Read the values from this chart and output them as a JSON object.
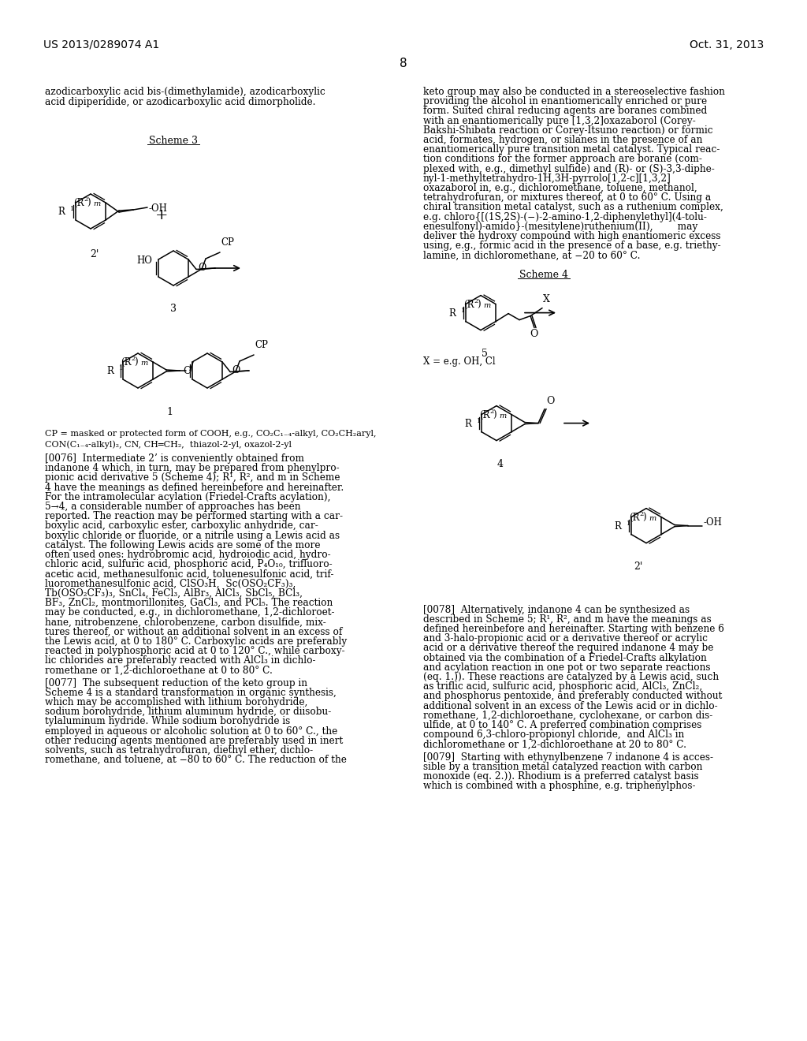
{
  "header_left": "US 2013/0289074 A1",
  "header_right": "Oct. 31, 2013",
  "page_number": "8",
  "bg": "#ffffff",
  "left_para1": "azodicarboxylic acid bis-(dimethylamide), azodicarboxylic\nacid dipiperidide, or azodicarboxylic acid dimorpholide.",
  "scheme3_label": "Scheme 3",
  "cp_note_line1": "CP = masked or protected form of COOH, e.g., CO₂C₁₋₄-alkyl, CO₂CH₂aryl,",
  "cp_note_line2": "CON(C₁₋₄-alkyl)₂, CN, CH═CH₂,  thiazol-2-yl, oxazol-2-yl",
  "right_para1_lines": [
    "keto group may also be conducted in a stereoselective fashion",
    "providing the alcohol in enantiomerically enriched or pure",
    "form. Suited chiral reducing agents are boranes combined",
    "with an enantiomerically pure [1,3,2]oxazaborol (Corey-",
    "Bakshi-Shibata reaction or Corey-Itsuno reaction) or formic",
    "acid, formates, hydrogen, or silanes in the presence of an",
    "enantiomerically pure transition metal catalyst. Typical reac-",
    "tion conditions for the former approach are borane (com-",
    "plexed with, e.g., dimethyl sulfide) and (R)- or (S)-3,3-diphe-",
    "nyl-1-methyltetrahydro-1H,3H-pyrrolo[1,2-c][1,3,2]",
    "oxazaborol in, e.g., dichloromethane, toluene, methanol,",
    "tetrahydrofuran, or mixtures thereof, at 0 to 60° C. Using a",
    "chiral transition metal catalyst, such as a ruthenium complex,",
    "e.g. chloro{[(1S,2S)-(−)-2-amino-1,2-diphenylethyl](4-tolu-",
    "enesulfonyl)-amido}-(mesitylene)ruthenium(II),        may",
    "deliver the hydroxy compound with high enantiomeric excess",
    "using, e.g., formic acid in the presence of a base, e.g. triethy-",
    "lamine, in dichloromethane, at −20 to 60° C."
  ],
  "scheme4_label": "Scheme 4",
  "x_note": "X = e.g. OH, Cl",
  "para_076_lines": [
    "[0076]  Intermediate 2’ is conveniently obtained from",
    "indanone 4 which, in turn, may be prepared from phenylpro-",
    "pionic acid derivative 5 (Scheme 4); R¹, R², and m in Scheme",
    "4 have the meanings as defined hereinbefore and hereinafter.",
    "For the intramolecular acylation (Friedel-Crafts acylation),",
    "5→4, a considerable number of approaches has been",
    "reported. The reaction may be performed starting with a car-",
    "boxylic acid, carboxylic ester, carboxylic anhydride, car-",
    "boxylic chloride or fluoride, or a nitrile using a Lewis acid as",
    "catalyst. The following Lewis acids are some of the more",
    "often used ones: hydrobromic acid, hydroiodic acid, hydro-",
    "chloric acid, sulfuric acid, phosphoric acid, P₄O₁₀, trifluoro-",
    "acetic acid, methanesulfonic acid, toluenesulfonic acid, trif-",
    "luoromethanesulfonic acid, ClSO₃H,  Sc(OSO₂CF₃)₃,",
    "Tb(OSO₂CF₃)₃, SnCl₄, FeCl₃, AlBr₃, AlCl₃, SbCl₅, BCl₃,",
    "BF₃, ZnCl₂, montmorillonites, GaCl₃, and PCl₅. The reaction",
    "may be conducted, e.g., in dichloromethane, 1,2-dichloroet-",
    "hane, nitrobenzene, chlorobenzene, carbon disulfide, mix-",
    "tures thereof, or without an additional solvent in an excess of",
    "the Lewis acid, at 0 to 180° C. Carboxylic acids are preferably",
    "reacted in polyphosphoric acid at 0 to 120° C., while carboxy-",
    "lic chlorides are preferably reacted with AlCl₃ in dichlo-",
    "romethane or 1,2-dichloroethane at 0 to 80° C."
  ],
  "para_077_lines": [
    "[0077]  The subsequent reduction of the keto group in",
    "Scheme 4 is a standard transformation in organic synthesis,",
    "which may be accomplished with lithium borohydride,",
    "sodium borohydride, lithium aluminum hydride, or diisobu-",
    "tylaluminum hydride. While sodium borohydride is",
    "employed in aqueous or alcoholic solution at 0 to 60° C., the",
    "other reducing agents mentioned are preferably used in inert",
    "solvents, such as tetrahydrofuran, diethyl ether, dichlo-",
    "romethane, and toluene, at −80 to 60° C. The reduction of the"
  ],
  "para_078_lines": [
    "[0078]  Alternatively, indanone 4 can be synthesized as",
    "described in Scheme 5; R¹, R², and m have the meanings as",
    "defined hereinbefore and hereinafter. Starting with benzene 6",
    "and 3-halo-propionic acid or a derivative thereof or acrylic",
    "acid or a derivative thereof the required indanone 4 may be",
    "obtained via the combination of a Friedel-Crafts alkylation",
    "and acylation reaction in one pot or two separate reactions",
    "(eq. 1.)). These reactions are catalyzed by a Lewis acid, such",
    "as triflic acid, sulfuric acid, phosphoric acid, AlCl₃, ZnCl₂,",
    "and phosphorus pentoxide, and preferably conducted without",
    "additional solvent in an excess of the Lewis acid or in dichlo-",
    "romethane, 1,2-dichloroethane, cyclohexane, or carbon dis-",
    "ulfide, at 0 to 140° C. A preferred combination comprises",
    "compound 6,3-chloro-propionyl chloride,  and AlCl₃ in",
    "dichloromethane or 1,2-dichloroethane at 20 to 80° C."
  ],
  "para_079_lines": [
    "[0079]  Starting with ethynylbenzene 7 indanone 4 is acces-",
    "sible by a transition metal catalyzed reaction with carbon",
    "monoxide (eq. 2.)). Rhodium is a preferred catalyst basis",
    "which is combined with a phosphine, e.g. triphenylphos-"
  ]
}
